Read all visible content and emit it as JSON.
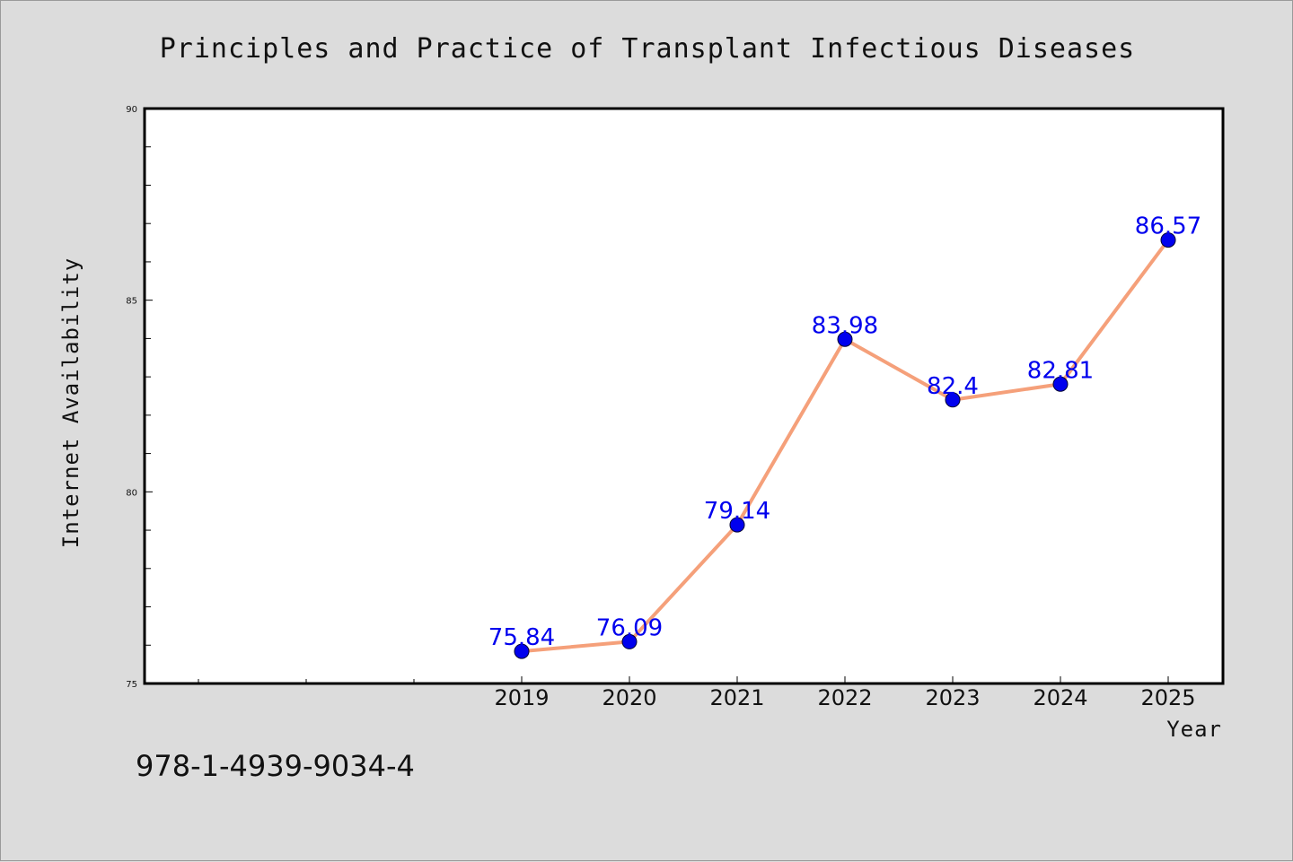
{
  "page": {
    "isbn": "978-1-4939-9034-4"
  },
  "colors": {
    "background": "#dcdcdc",
    "plot_background": "#ffffff",
    "line": "#f5a07a",
    "marker": "#0000ee",
    "data_label": "#0000ee"
  },
  "chart_data": {
    "type": "line",
    "title": "Principles and Practice of Transplant Infectious Diseases",
    "xlabel": "Year",
    "ylabel": "Internet Availability",
    "categories": [
      "2019",
      "2020",
      "2021",
      "2022",
      "2023",
      "2024",
      "2025"
    ],
    "values": [
      75.84,
      76.09,
      79.14,
      83.98,
      82.4,
      82.81,
      86.57
    ],
    "labels": [
      "75.84",
      "76.09",
      "79.14",
      "83.98",
      "82.4",
      "82.81",
      "86.57"
    ],
    "ylim": [
      75,
      90
    ],
    "yticks": [
      "75",
      "80",
      "85",
      "90"
    ],
    "grid": false,
    "legend": "none"
  }
}
